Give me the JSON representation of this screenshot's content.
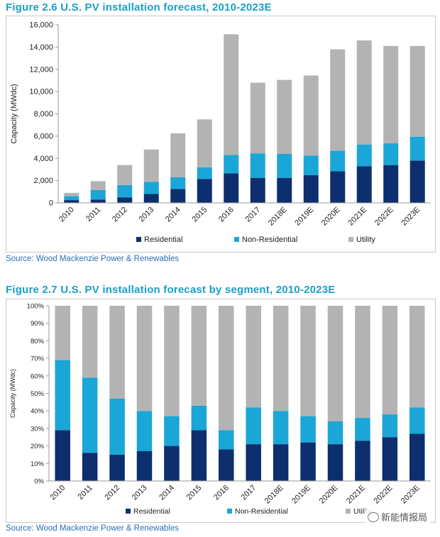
{
  "colors": {
    "residential": "#0d2f6e",
    "non_residential": "#1aa6d6",
    "utility": "#b3b3b3",
    "title": "#1aa0c8",
    "source": "#2a6fb5"
  },
  "source_text": "Source: Wood Mackenzie Power & Renewables",
  "watermark": "新能情报局",
  "chart_data": [
    {
      "type": "bar",
      "stacked": true,
      "title": "Figure 2.6 U.S. PV installation forecast, 2010-2023E",
      "xlabel": "",
      "ylabel": "Capacity (MWdc)",
      "ylim": [
        0,
        16000
      ],
      "yticks": [
        0,
        2000,
        4000,
        6000,
        8000,
        10000,
        12000,
        14000,
        16000
      ],
      "ytick_labels": [
        "0",
        "2,000",
        "4,000",
        "6,000",
        "8,000",
        "10,000",
        "12,000",
        "14,000",
        "16,000"
      ],
      "grid": false,
      "legend": "bottom",
      "categories": [
        "2010",
        "2011",
        "2012",
        "2013",
        "2014",
        "2015",
        "2016",
        "2017",
        "2018E",
        "2019E",
        "2020E",
        "2021E",
        "2022E",
        "2023E"
      ],
      "series": [
        {
          "name": "Residential",
          "values": [
            250,
            300,
            500,
            800,
            1250,
            2150,
            2650,
            2250,
            2250,
            2500,
            2850,
            3300,
            3400,
            3800
          ]
        },
        {
          "name": "Non-Residential",
          "values": [
            350,
            850,
            1100,
            1100,
            1050,
            1050,
            1650,
            2200,
            2150,
            1750,
            1850,
            1950,
            1950,
            2150
          ]
        },
        {
          "name": "Utility",
          "values": [
            300,
            800,
            1800,
            2900,
            3950,
            4300,
            10850,
            6350,
            6650,
            7200,
            9100,
            9350,
            8750,
            8150
          ]
        }
      ]
    },
    {
      "type": "bar",
      "stacked": true,
      "title": "Figure 2.7 U.S. PV installation forecast by segment, 2010-2023E",
      "xlabel": "",
      "ylabel": "Capacity (MWdc)",
      "ylim": [
        0,
        100
      ],
      "yticks": [
        0,
        10,
        20,
        30,
        40,
        50,
        60,
        70,
        80,
        90,
        100
      ],
      "ytick_labels": [
        "0%",
        "10%",
        "20%",
        "30%",
        "40%",
        "50%",
        "60%",
        "70%",
        "80%",
        "90%",
        "100%"
      ],
      "grid": false,
      "legend": "bottom",
      "categories": [
        "2010",
        "2011",
        "2012",
        "2013",
        "2014",
        "2015",
        "2016",
        "2017",
        "2018E",
        "2019E",
        "2020E",
        "2021E",
        "2022E",
        "2023E"
      ],
      "series": [
        {
          "name": "Residential",
          "values": [
            29,
            16,
            15,
            17,
            20,
            29,
            18,
            21,
            21,
            22,
            21,
            23,
            25,
            27
          ]
        },
        {
          "name": "Non-Residential",
          "values": [
            40,
            43,
            32,
            23,
            17,
            14,
            11,
            21,
            19,
            15,
            13,
            13,
            13,
            15
          ]
        },
        {
          "name": "Utility",
          "values": [
            31,
            41,
            53,
            60,
            63,
            57,
            71,
            58,
            60,
            63,
            66,
            64,
            62,
            58
          ]
        }
      ]
    }
  ]
}
